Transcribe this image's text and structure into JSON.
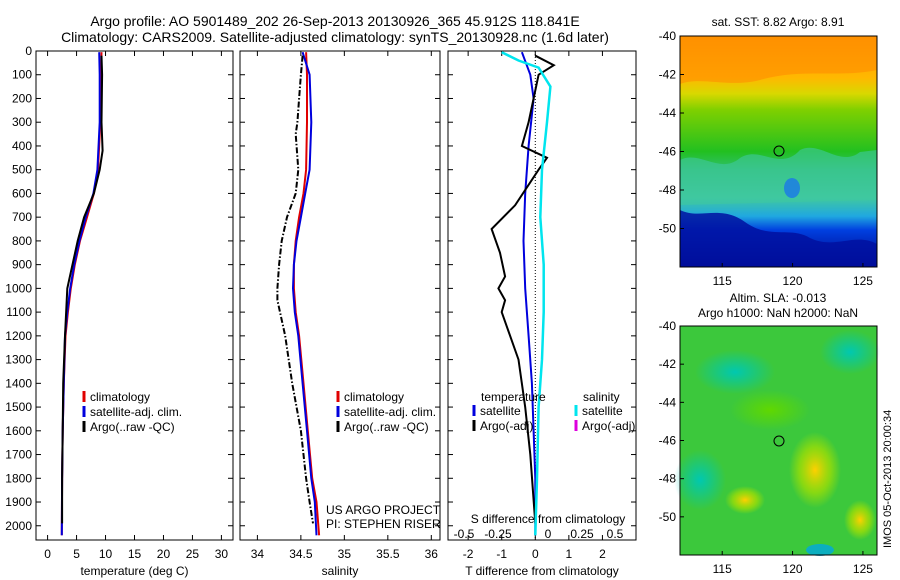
{
  "header": {
    "line1": "Argo profile: AO 5901489_202 26-Sep-2013 20130926_365 45.912S 118.841E",
    "line2": "Climatology: CARS2009. Satellite-adjusted climatology: synTS_20130928.nc (1.6d later)"
  },
  "colors": {
    "climatology": "#e00000",
    "satellite": "#0000dd",
    "argo": "#000000",
    "salinity_satellite": "#00e5ee",
    "salinity_argo": "#dd00dd"
  },
  "chart_data": [
    {
      "type": "line",
      "xlabel": "temperature (deg C)",
      "xlim": [
        -2,
        32
      ],
      "xticks": [
        0,
        5,
        10,
        15,
        20,
        25,
        30
      ],
      "ylim": [
        0,
        2060
      ],
      "yticks": [
        0,
        100,
        200,
        300,
        400,
        500,
        600,
        700,
        800,
        900,
        1000,
        1100,
        1200,
        1300,
        1400,
        1500,
        1600,
        1700,
        1800,
        1900,
        2000
      ],
      "legend": [
        "climatology",
        "satellite-adj. clim.",
        "Argo(..raw -QC)"
      ],
      "series": [
        {
          "name": "climatology",
          "x": [
            9.3,
            9.2,
            9.1,
            8.7,
            8.0,
            6.8,
            5.6,
            4.7,
            4.0,
            3.5,
            3.1,
            2.8,
            2.6,
            2.5,
            2.45
          ],
          "y": [
            5,
            100,
            300,
            500,
            600,
            700,
            800,
            900,
            1000,
            1100,
            1200,
            1400,
            1600,
            1800,
            2040
          ]
        },
        {
          "name": "satellite-adj. clim.",
          "x": [
            8.9,
            9.0,
            9.0,
            8.6,
            7.9,
            6.6,
            5.5,
            4.6,
            3.9,
            3.4,
            3.0,
            2.8,
            2.6,
            2.5,
            2.45
          ],
          "y": [
            5,
            100,
            300,
            500,
            600,
            700,
            800,
            900,
            1000,
            1100,
            1200,
            1400,
            1600,
            1800,
            2040
          ]
        },
        {
          "name": "Argo(..raw -QC)",
          "x": [
            9.3,
            9.4,
            9.3,
            9.5,
            9.0,
            8.0,
            6.3,
            5.2,
            4.3,
            3.4,
            3.0,
            2.7,
            2.6,
            2.5,
            2.5
          ],
          "y": [
            20,
            100,
            300,
            420,
            500,
            600,
            700,
            800,
            900,
            1000,
            1200,
            1400,
            1600,
            1800,
            1990
          ]
        }
      ]
    },
    {
      "type": "line",
      "xlabel": "salinity",
      "xlim": [
        33.8,
        36.1
      ],
      "xticks": [
        34,
        34.5,
        35,
        35.5,
        36
      ],
      "ylim": [
        0,
        2060
      ],
      "legend": [
        "climatology",
        "satellite-adj. clim.",
        "Argo(..raw -QC)"
      ],
      "annotation": [
        "US ARGO PROJECT",
        "PI: STEPHEN RISER"
      ],
      "series": [
        {
          "name": "climatology",
          "x": [
            34.56,
            34.57,
            34.57,
            34.56,
            34.53,
            34.48,
            34.44,
            34.42,
            34.42,
            34.44,
            34.48,
            34.53,
            34.58,
            34.63,
            34.68,
            34.71
          ],
          "y": [
            5,
            100,
            300,
            500,
            600,
            700,
            800,
            900,
            1000,
            1100,
            1200,
            1400,
            1600,
            1800,
            1900,
            2040
          ]
        },
        {
          "name": "satellite-adj. clim.",
          "x": [
            34.52,
            34.6,
            34.62,
            34.6,
            34.55,
            34.5,
            34.45,
            34.42,
            34.41,
            34.43,
            34.47,
            34.52,
            34.57,
            34.62,
            34.66,
            34.68
          ],
          "y": [
            5,
            100,
            300,
            500,
            600,
            700,
            800,
            900,
            1000,
            1100,
            1200,
            1400,
            1600,
            1800,
            1900,
            2040
          ]
        },
        {
          "name": "Argo(..raw -QC)",
          "x": [
            34.52,
            34.5,
            34.48,
            34.46,
            34.44,
            34.47,
            34.44,
            34.34,
            34.28,
            34.25,
            34.23,
            34.23,
            34.26,
            34.32,
            34.4,
            34.5,
            34.56,
            34.6,
            34.64
          ],
          "y": [
            20,
            100,
            200,
            300,
            350,
            500,
            600,
            700,
            800,
            900,
            1000,
            1050,
            1100,
            1200,
            1400,
            1600,
            1800,
            1900,
            1990
          ]
        }
      ]
    },
    {
      "type": "line",
      "xlabel": "T difference from climatology",
      "xlabel_top": "S difference from climatology",
      "xlim": [
        -2.6,
        3.0
      ],
      "xticks": [
        -2,
        -1,
        0,
        1,
        2
      ],
      "xticks_top": [
        -0.5,
        -0.25,
        0,
        0.25,
        0.5
      ],
      "ylim": [
        0,
        2060
      ],
      "legend_left_title": "temperature",
      "legend_right_title": "salinity",
      "legend_left": [
        "satellite",
        "Argo(-adj)"
      ],
      "legend_right": [
        "satellite",
        "Argo(-adj)"
      ],
      "series": [
        {
          "name": "temperature satellite",
          "x": [
            -0.4,
            -0.15,
            -0.05,
            -0.2,
            -0.3,
            -0.35,
            -0.3,
            -0.2,
            -0.1,
            -0.05,
            0,
            0
          ],
          "y": [
            5,
            100,
            200,
            400,
            600,
            800,
            1000,
            1200,
            1400,
            1600,
            1800,
            2040
          ]
        },
        {
          "name": "temperature Argo(-adj)",
          "x": [
            0.0,
            0.55,
            0.1,
            -0.05,
            -0.2,
            -0.4,
            0.35,
            0.1,
            -0.6,
            -1.3,
            -1.05,
            -0.9,
            -1.1,
            -0.9,
            -1.0,
            -0.5,
            -0.3,
            -0.15,
            0.0
          ],
          "y": [
            20,
            60,
            100,
            200,
            300,
            400,
            450,
            500,
            650,
            750,
            850,
            950,
            1000,
            1050,
            1100,
            1300,
            1500,
            1700,
            1990
          ]
        },
        {
          "name": "salinity satellite",
          "x": [
            -1.0,
            -0.5,
            0.1,
            0.45,
            0.35,
            0.2,
            0.15,
            0.25,
            0.25,
            0.2,
            0.1,
            0.05,
            0.0
          ],
          "y": [
            5,
            40,
            70,
            150,
            300,
            500,
            700,
            900,
            1100,
            1300,
            1500,
            1800,
            2040
          ]
        }
      ]
    }
  ],
  "sst_panel": {
    "title": "sat. SST: 8.82 Argo: 8.91",
    "xticks": [
      115,
      120,
      125
    ],
    "yticks": [
      -40,
      -42,
      -44,
      -46,
      -48,
      -50
    ],
    "xlim": [
      112,
      126
    ],
    "ylim": [
      -52,
      -40
    ],
    "marker": [
      118.84,
      -45.91
    ]
  },
  "sla_panel": {
    "title_line1": "Altim. SLA: -0.013",
    "title_line2": "Argo h1000: NaN h2000: NaN",
    "xticks": [
      115,
      120,
      125
    ],
    "yticks": [
      -40,
      -42,
      -44,
      -46,
      -48,
      -50
    ],
    "xlim": [
      112,
      126
    ],
    "ylim": [
      -52,
      -40
    ],
    "marker": [
      118.84,
      -45.91
    ]
  },
  "side_label": "IMOS 05-Oct-2013 20:00:34"
}
